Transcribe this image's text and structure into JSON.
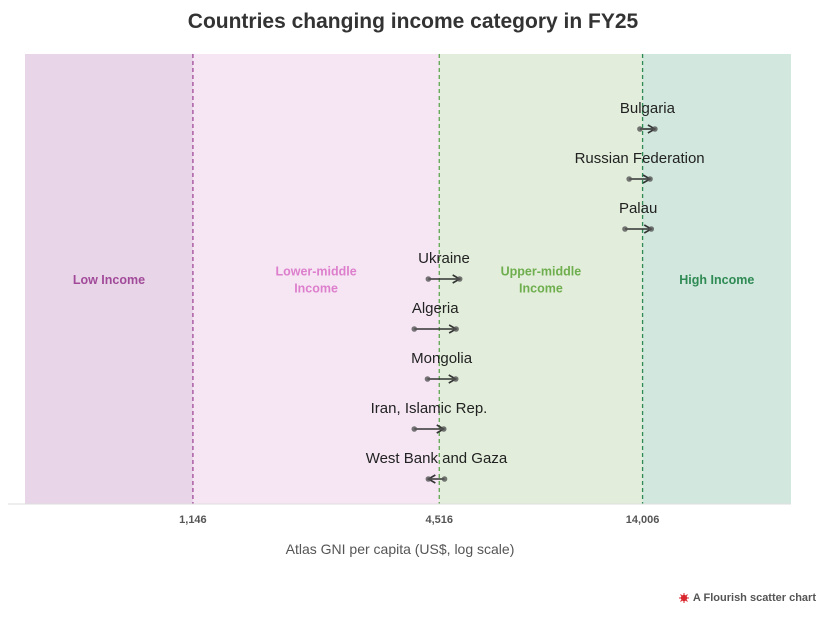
{
  "chart_data": {
    "type": "scatter",
    "title": "Countries changing income category in FY25",
    "xlabel": "Atlas GNI per capita (US$, log scale)",
    "xscale": "log",
    "xlim": [
      450,
      32000
    ],
    "grid": false,
    "thresholds": [
      {
        "value": 1146,
        "label": "1,146"
      },
      {
        "value": 4516,
        "label": "4,516"
      },
      {
        "value": 14006,
        "label": "14,006"
      }
    ],
    "bands": [
      {
        "name": "Low Income",
        "color": "#e8d6e8",
        "text_color": "#a24a9a",
        "line_color": "#a24a9a"
      },
      {
        "name": "Lower-middle Income",
        "lines": [
          "Lower-middle",
          "Income"
        ],
        "color": "#f6e6f4",
        "text_color": "#dd7fcc",
        "line_color": "#5fa64f"
      },
      {
        "name": "Upper-middle Income",
        "lines": [
          "Upper-middle",
          "Income"
        ],
        "color": "#e2eedb",
        "text_color": "#6fae4e",
        "line_color": "#2f8a54"
      },
      {
        "name": "High Income",
        "color": "#d2e8de",
        "text_color": "#2f8a54"
      }
    ],
    "countries": [
      {
        "name": "Bulgaria",
        "from": 13800,
        "to": 15000
      },
      {
        "name": "Russian Federation",
        "from": 13000,
        "to": 14600
      },
      {
        "name": "Palau",
        "from": 12700,
        "to": 14700
      },
      {
        "name": "Ukraine",
        "from": 4250,
        "to": 5060
      },
      {
        "name": "Algeria",
        "from": 3930,
        "to": 4960
      },
      {
        "name": "Mongolia",
        "from": 4230,
        "to": 4950
      },
      {
        "name": "Iran, Islamic Rep.",
        "from": 3930,
        "to": 4630
      },
      {
        "name": "West Bank and Gaza",
        "from": 4650,
        "to": 4250
      }
    ]
  },
  "footer": {
    "label": "A Flourish scatter chart"
  }
}
